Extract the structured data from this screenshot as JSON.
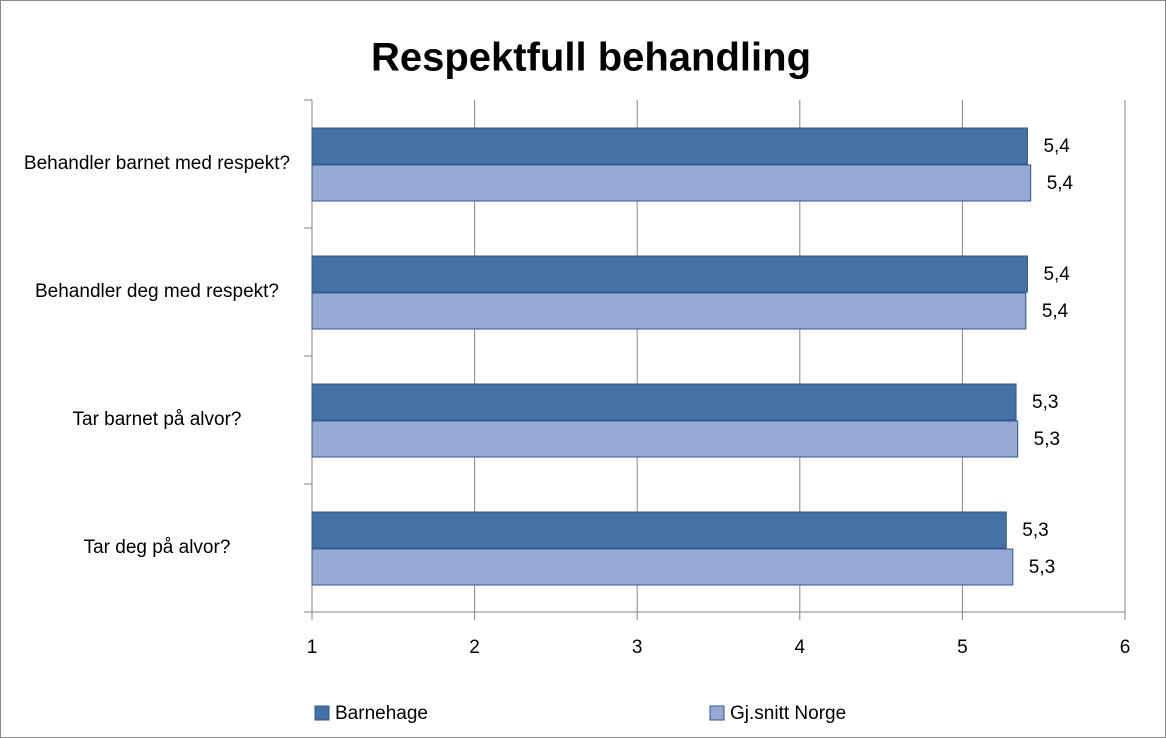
{
  "chart_data": {
    "type": "hbar",
    "title": "Respektfull behandling",
    "categories": [
      "Behandler barnet med respekt?",
      "Behandler deg med respekt?",
      "Tar barnet på alvor?",
      "Tar deg på alvor?"
    ],
    "series": [
      {
        "name": "Barnehage",
        "color": "#4472a8",
        "values": [
          5.4,
          5.4,
          5.33,
          5.27
        ],
        "value_labels": [
          "5,4",
          "5,4",
          "5,3",
          "5,3"
        ]
      },
      {
        "name": "Gj.snitt Norge",
        "color": "#95a9d4",
        "values": [
          5.42,
          5.39,
          5.34,
          5.31
        ],
        "value_labels": [
          "5,4",
          "5,4",
          "5,3",
          "5,3"
        ]
      }
    ],
    "xlim": [
      1,
      6
    ],
    "xticks": [
      1,
      2,
      3,
      4,
      5,
      6
    ],
    "grid": true,
    "legend": "bottom"
  }
}
